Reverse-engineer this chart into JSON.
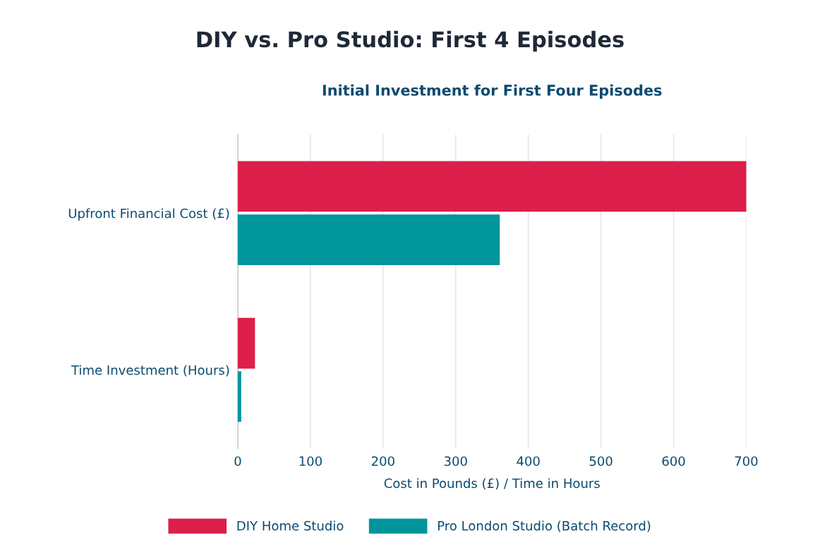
{
  "chart_data": {
    "type": "bar",
    "orientation": "horizontal",
    "title": "DIY vs. Pro Studio: First 4 Episodes",
    "subtitle": "Initial Investment for First Four Episodes",
    "categories": [
      "Upfront Financial Cost (£)",
      "Time Investment (Hours)"
    ],
    "series": [
      {
        "name": "DIY Home Studio",
        "color": "#dc1f4b",
        "values": [
          700,
          23
        ]
      },
      {
        "name": "Pro London Studio (Batch Record)",
        "color": "#00959b",
        "values": [
          360,
          4
        ]
      }
    ],
    "xlim": [
      0,
      700
    ],
    "xticks": [
      0,
      100,
      200,
      300,
      400,
      500,
      600,
      700
    ],
    "xlabel": "Cost in Pounds (£) / Time in Hours",
    "grid": "x",
    "legend": "bottom"
  }
}
